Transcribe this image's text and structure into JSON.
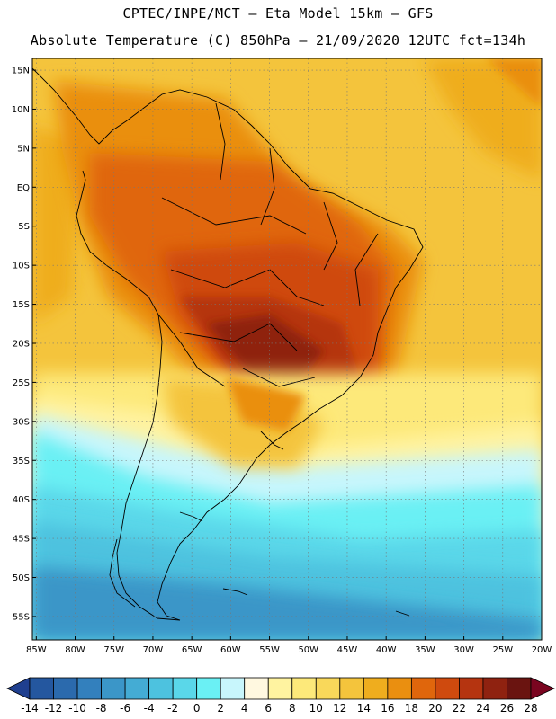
{
  "header": {
    "line1": "CPTEC/INPE/MCT –  Eta Model 15km – GFS",
    "line2": "Absolute Temperature (C) 850hPa – 21/09/2020 12UTC fct=134h"
  },
  "axes": {
    "lat_labels": [
      "15N",
      "10N",
      "5N",
      "EQ",
      "5S",
      "10S",
      "15S",
      "20S",
      "25S",
      "30S",
      "35S",
      "40S",
      "45S",
      "50S",
      "55S"
    ],
    "lat_values": [
      15,
      10,
      5,
      0,
      -5,
      -10,
      -15,
      -20,
      -25,
      -30,
      -35,
      -40,
      -45,
      -50,
      -55
    ],
    "lon_labels": [
      "85W",
      "80W",
      "75W",
      "70W",
      "65W",
      "60W",
      "55W",
      "50W",
      "45W",
      "40W",
      "35W",
      "30W",
      "25W",
      "20W"
    ],
    "lon_values": [
      -85,
      -80,
      -75,
      -70,
      -65,
      -60,
      -55,
      -50,
      -45,
      -40,
      -35,
      -30,
      -25,
      -20
    ],
    "lat_range": [
      -58,
      16.5
    ],
    "lon_range": [
      -85.5,
      -20
    ],
    "grid": "dotted"
  },
  "colorbar": {
    "levels": [
      "-14",
      "-12",
      "-10",
      "-8",
      "-6",
      "-4",
      "-2",
      "0",
      "2",
      "4",
      "6",
      "8",
      "10",
      "12",
      "14",
      "16",
      "18",
      "20",
      "22",
      "24",
      "26",
      "28"
    ],
    "colors": [
      "#1f3f8f",
      "#24579f",
      "#2b6aad",
      "#3380bd",
      "#3b96c8",
      "#44acd4",
      "#4dc2df",
      "#5ad7e9",
      "#6af0f4",
      "#c8f6fc",
      "#fff8e0",
      "#fff3a0",
      "#fde97a",
      "#f9d85a",
      "#f4c43c",
      "#efad1e",
      "#ea8f10",
      "#e0660c",
      "#cf4a0e",
      "#b53410",
      "#8f2210",
      "#6a1410",
      "#7a0520"
    ]
  },
  "chart_data": {
    "type": "heatmap",
    "variable": "Absolute Temperature (C) 850hPa",
    "date": "21/09/2020 12UTC",
    "forecast": "fct=134h",
    "model": "Eta Model 15km – GFS",
    "regions": [
      {
        "lon": [
          -85,
          -20
        ],
        "lat": [
          -25,
          16
        ],
        "temp_c": 18
      },
      {
        "lon": [
          -38,
          -20
        ],
        "lat": [
          5,
          16
        ],
        "temp_c": 20
      },
      {
        "lon": [
          -80,
          -60
        ],
        "lat": [
          -5,
          10
        ],
        "temp_c": 22
      },
      {
        "lon": [
          -65,
          -50
        ],
        "lat": [
          -5,
          5
        ],
        "temp_c": 22
      },
      {
        "lon": [
          -62,
          -42
        ],
        "lat": [
          -18,
          -8
        ],
        "temp_c": 24
      },
      {
        "lon": [
          -62,
          -46
        ],
        "lat": [
          -25,
          -15
        ],
        "temp_c": 26
      },
      {
        "lon": [
          -85,
          -20
        ],
        "lat": [
          -32,
          -25
        ],
        "temp_c": 8
      },
      {
        "lon": [
          -85,
          -20
        ],
        "lat": [
          -42,
          -32
        ],
        "temp_c": 2
      },
      {
        "lon": [
          -85,
          -20
        ],
        "lat": [
          -50,
          -42
        ],
        "temp_c": 0
      },
      {
        "lon": [
          -85,
          -20
        ],
        "lat": [
          -58,
          -50
        ],
        "temp_c": -4
      }
    ]
  }
}
